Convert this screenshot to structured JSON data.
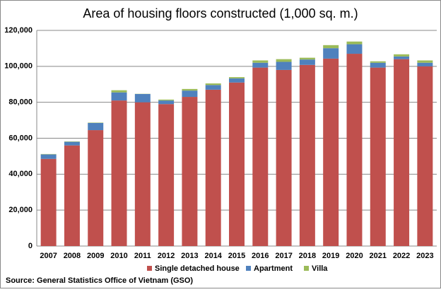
{
  "chart_data": {
    "type": "stacked_bar",
    "title": "Area of housing floors constructed (1,000 sq. m.)",
    "categories": [
      "2007",
      "2008",
      "2009",
      "2010",
      "2011",
      "2012",
      "2013",
      "2014",
      "2015",
      "2016",
      "2017",
      "2018",
      "2019",
      "2020",
      "2021",
      "2022",
      "2023"
    ],
    "series": [
      {
        "name": "Single detached house",
        "color": "#c0504d",
        "values": [
          48500,
          56000,
          64500,
          81000,
          80000,
          79000,
          83000,
          87000,
          91000,
          99300,
          98000,
          100800,
          104300,
          107000,
          99300,
          104000,
          100000
        ]
      },
      {
        "name": "Apartment",
        "color": "#4f81bd",
        "values": [
          2500,
          2000,
          4000,
          4500,
          4600,
          2000,
          3500,
          2600,
          2300,
          2700,
          4500,
          3000,
          5800,
          5300,
          2700,
          1500,
          2000
        ]
      },
      {
        "name": "Villa",
        "color": "#9bbb59",
        "values": [
          200,
          200,
          200,
          1200,
          100,
          500,
          900,
          900,
          700,
          1300,
          1500,
          1000,
          1700,
          1500,
          800,
          1200,
          1300
        ]
      }
    ],
    "ylim": [
      0,
      120000
    ],
    "yticks": [
      0,
      {
        "value": 20000,
        "label": "20,000"
      },
      {
        "value": 40000,
        "label": "40,000"
      },
      {
        "value": 60000,
        "label": "60,000"
      },
      {
        "value": 80000,
        "label": "80,000"
      },
      {
        "value": 100000,
        "label": "100,000"
      },
      {
        "value": 120000,
        "label": "120,000"
      }
    ],
    "grid": true,
    "legend": "bottom",
    "source": "Source: General Statistics Office of Vietnam (GSO)"
  }
}
